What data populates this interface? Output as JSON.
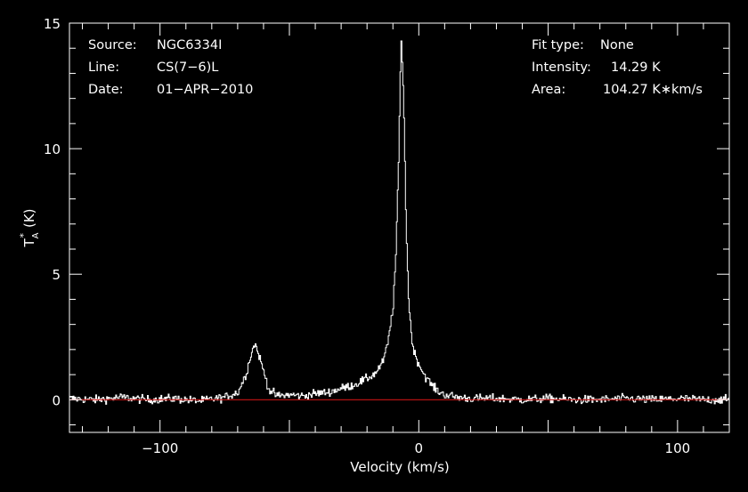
{
  "chart_data": {
    "type": "line",
    "xlabel": "Velocity (km/s)",
    "ylabel": {
      "main": "T",
      "sub": "A",
      "sup": "*",
      "unit": "(K)"
    },
    "xlim": [
      -135,
      120
    ],
    "ylim": [
      -1.3,
      15
    ],
    "x_ticks": [
      -100,
      0,
      100
    ],
    "y_ticks": [
      0,
      5,
      10,
      15
    ],
    "x_tick_labels": [
      "−100",
      "0",
      "100"
    ],
    "y_tick_labels": [
      "0",
      "5",
      "10",
      "15"
    ],
    "baseline": {
      "y": 0,
      "color": "#c81414"
    },
    "line_color": "#ffffff",
    "background": "#000000",
    "grid": false,
    "info": {
      "source_label": "Source:",
      "source_value": "NGC6334I",
      "line_label": "Line:",
      "line_value": "CS(7−6)L",
      "date_label": "Date:",
      "date_value": "01−APR−2010",
      "fit_label": "Fit type:",
      "fit_value": "None",
      "intensity_label": "Intensity:",
      "intensity_value": "14.29 K",
      "area_label": "Area:",
      "area_value": "104.27 K∗km/s"
    },
    "series": [
      {
        "values_x": [
          -135,
          -125,
          -115,
          -105,
          -95,
          -85,
          -75,
          -70,
          -67,
          -65,
          -63.5,
          -62,
          -60,
          -58,
          -55,
          -50,
          -45,
          -40,
          -35,
          -30,
          -25,
          -20,
          -17,
          -14,
          -12,
          -10,
          -9,
          -8,
          -7.5,
          -7,
          -6.5,
          -6,
          -5.5,
          -5,
          -4,
          -3,
          -2,
          0,
          2,
          4,
          6,
          8,
          10,
          15,
          20,
          30,
          40,
          50,
          60,
          70,
          80,
          90,
          100,
          110,
          120
        ],
        "values_y": [
          0.05,
          0.0,
          0.1,
          0.0,
          0.05,
          -0.05,
          0.1,
          0.3,
          1.0,
          1.8,
          2.25,
          1.8,
          1.1,
          0.4,
          0.15,
          0.2,
          0.15,
          0.25,
          0.3,
          0.45,
          0.6,
          0.85,
          1.05,
          1.5,
          2.3,
          3.8,
          5.8,
          9.2,
          11.8,
          14.29,
          13.5,
          12.0,
          9.5,
          6.8,
          3.8,
          2.6,
          1.9,
          1.4,
          1.0,
          0.7,
          0.45,
          0.3,
          0.2,
          0.1,
          0.05,
          0.05,
          0.0,
          0.05,
          0.0,
          0.0,
          0.05,
          0.0,
          0.05,
          0.0,
          0.0
        ],
        "noise_rms": 0.12
      }
    ]
  }
}
